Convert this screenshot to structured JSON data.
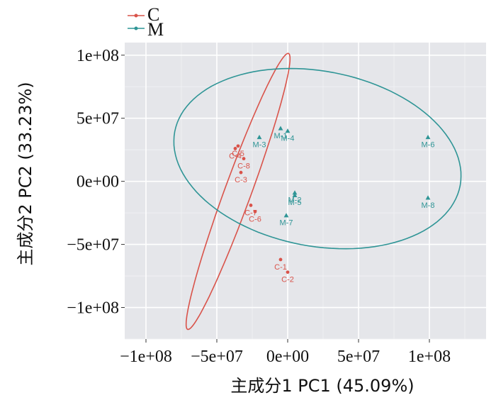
{
  "chart_data": {
    "type": "scatter",
    "xlabel": "主成分1 PC1 (45.09%)",
    "ylabel": "主成分2 PC2 (33.23%)",
    "xlim": [
      -115000000,
      140000000
    ],
    "ylim": [
      -125000000,
      110000000
    ],
    "xticks": [
      {
        "value": -100000000,
        "label": "−1e+08"
      },
      {
        "value": -50000000,
        "label": "−5e+07"
      },
      {
        "value": 0,
        "label": "0e+00"
      },
      {
        "value": 50000000,
        "label": "5e+07"
      },
      {
        "value": 100000000,
        "label": "1e+08"
      }
    ],
    "yticks": [
      {
        "value": 100000000,
        "label": "1e+08"
      },
      {
        "value": 50000000,
        "label": "5e+07"
      },
      {
        "value": 0,
        "label": "0e+00"
      },
      {
        "value": -50000000,
        "label": "−5e+07"
      },
      {
        "value": -100000000,
        "label": "−1e+08"
      }
    ],
    "grid": true,
    "legend_position": "top-left",
    "series": [
      {
        "name": "C",
        "color": "#d9534a",
        "marker": "circle",
        "points": [
          {
            "label": "C-1",
            "x": -5000000,
            "y": -62000000
          },
          {
            "label": "C-2",
            "x": 0,
            "y": -72000000
          },
          {
            "label": "C-3",
            "x": -33000000,
            "y": 7000000
          },
          {
            "label": "C-4",
            "x": -37000000,
            "y": 26000000
          },
          {
            "label": "C-5",
            "x": -35000000,
            "y": 28000000
          },
          {
            "label": "C-6",
            "x": -23000000,
            "y": -24000000
          },
          {
            "label": "C-7",
            "x": -26000000,
            "y": -19000000
          },
          {
            "label": "C-8",
            "x": -31000000,
            "y": 18000000
          }
        ],
        "ellipse": {
          "cx": -35000000,
          "cy": -8000000,
          "rx": 115000000,
          "ry": 9500000,
          "angle_deg": 72
        }
      },
      {
        "name": "M",
        "color": "#2f9596",
        "marker": "triangle",
        "points": [
          {
            "label": "M-1",
            "x": -5000000,
            "y": 42000000
          },
          {
            "label": "M-2",
            "x": 5000000,
            "y": -9000000
          },
          {
            "label": "M-3",
            "x": -20000000,
            "y": 35000000
          },
          {
            "label": "M-4",
            "x": 0,
            "y": 40000000
          },
          {
            "label": "M-5",
            "x": 5000000,
            "y": -11000000
          },
          {
            "label": "M-6",
            "x": 99000000,
            "y": 35000000
          },
          {
            "label": "M-7",
            "x": -1000000,
            "y": -27000000
          },
          {
            "label": "M-8",
            "x": 99000000,
            "y": -13000000
          }
        ],
        "ellipse": {
          "cx": 21000000,
          "cy": 18000000,
          "rx": 103000000,
          "ry": 69000000,
          "angle_deg": -14
        }
      }
    ]
  }
}
